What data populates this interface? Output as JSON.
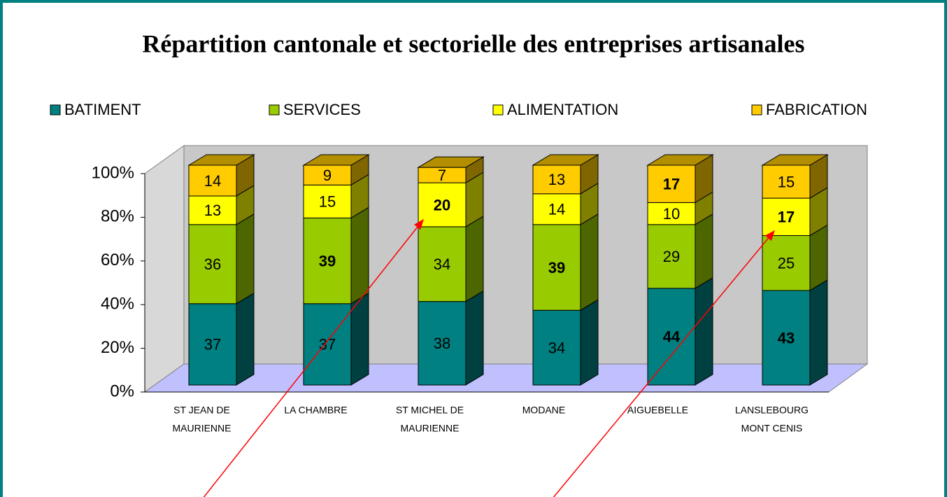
{
  "chart_data": {
    "type": "bar3d_stacked_percent",
    "title": "Répartition cantonale et sectorielle des entreprises artisanales",
    "categories": [
      [
        "ST JEAN DE",
        "MAURIENNE"
      ],
      [
        "LA CHAMBRE"
      ],
      [
        "ST MICHEL DE",
        "MAURIENNE"
      ],
      [
        "MODANE"
      ],
      [
        "AIGUEBELLE"
      ],
      [
        "LANSLEBOURG",
        "MONT CENIS"
      ]
    ],
    "series": [
      {
        "name": "BATIMENT",
        "color": "#008080",
        "values": [
          37,
          37,
          38,
          34,
          44,
          43
        ],
        "bold": [
          false,
          false,
          false,
          false,
          true,
          true
        ]
      },
      {
        "name": "SERVICES",
        "color": "#99cc00",
        "values": [
          36,
          39,
          34,
          39,
          29,
          25
        ],
        "bold": [
          false,
          true,
          false,
          true,
          false,
          false
        ]
      },
      {
        "name": "ALIMENTATION",
        "color": "#ffff00",
        "values": [
          13,
          15,
          20,
          14,
          10,
          17
        ],
        "bold": [
          false,
          false,
          true,
          false,
          false,
          true
        ]
      },
      {
        "name": "FABRICATION",
        "color": "#ffcc00",
        "values": [
          14,
          9,
          7,
          13,
          17,
          15
        ],
        "bold": [
          false,
          false,
          false,
          false,
          true,
          false
        ]
      }
    ],
    "ylim": [
      0,
      100
    ],
    "yticks": [
      {
        "value": 0,
        "label": "0%"
      },
      {
        "value": 20,
        "label": "20%"
      },
      {
        "value": 40,
        "label": "40%"
      },
      {
        "value": 60,
        "label": "60%"
      },
      {
        "value": 80,
        "label": "80%"
      },
      {
        "value": 100,
        "label": "100%"
      }
    ],
    "legend": "top"
  }
}
